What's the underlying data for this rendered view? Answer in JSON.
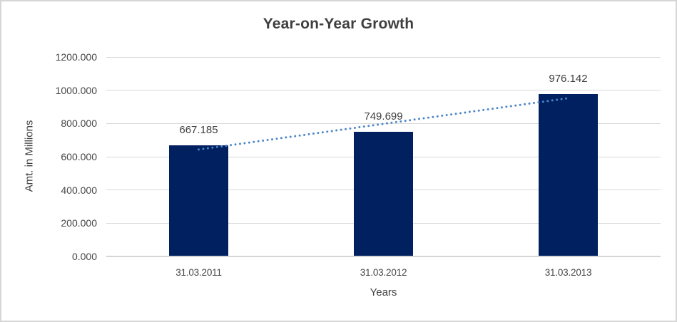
{
  "chart_data": {
    "type": "bar",
    "title": "Year-on-Year Growth",
    "xlabel": "Years",
    "ylabel": "Amt. in Millions",
    "categories": [
      "31.03.2011",
      "31.03.2012",
      "31.03.2013"
    ],
    "values": [
      667.185,
      749.699,
      976.142
    ],
    "data_labels": [
      "667.185",
      "749.699",
      "976.142"
    ],
    "series": [
      {
        "name": "Amt. in Millions",
        "values": [
          667.185,
          749.699,
          976.142
        ]
      }
    ],
    "ylim": [
      0,
      1200
    ],
    "ytick_step": 200,
    "ytick_labels": [
      "0.000",
      "200.000",
      "400.000",
      "600.000",
      "800.000",
      "1000.000",
      "1200.000"
    ],
    "grid": true,
    "legend": "none",
    "trendline": {
      "type": "linear",
      "style": "dotted"
    },
    "colors": {
      "bar": "#002060",
      "trendline": "#4E86C8",
      "gridline": "#D9D9D9",
      "axis_line": "#D2D2D2",
      "text": "#464646",
      "title_text": "#3F3F3F",
      "border": "#D6D6D6",
      "background": "#FFFFFF"
    }
  }
}
